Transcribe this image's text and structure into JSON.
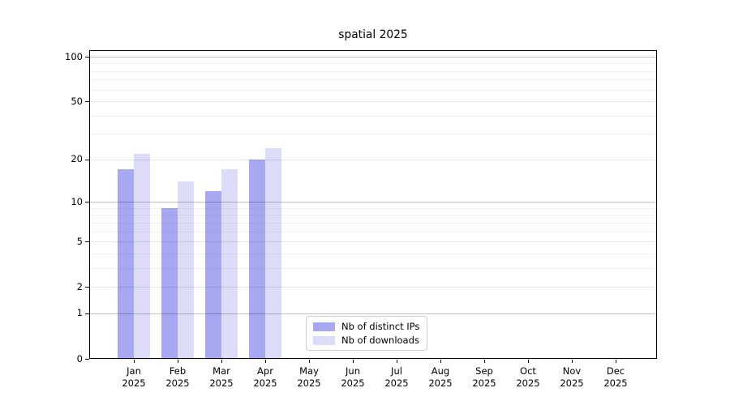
{
  "chart_data": {
    "type": "bar",
    "title": "spatial 2025",
    "categories": [
      "Jan",
      "Feb",
      "Mar",
      "Apr",
      "May",
      "Jun",
      "Jul",
      "Aug",
      "Sep",
      "Oct",
      "Nov",
      "Dec"
    ],
    "category_year": "2025",
    "series": [
      {
        "name": "Nb of distinct IPs",
        "color": "#a8a8f2",
        "values": [
          17,
          9,
          12,
          20,
          0,
          0,
          0,
          0,
          0,
          0,
          0,
          0
        ]
      },
      {
        "name": "Nb of downloads",
        "color": "#dcdcf8",
        "values": [
          22,
          14,
          17,
          24,
          0,
          0,
          0,
          0,
          0,
          0,
          0,
          0
        ]
      }
    ],
    "y_axis": {
      "scale": "log1p",
      "ylim": [
        0,
        100
      ],
      "major_ticks": [
        0,
        1,
        2,
        5,
        10,
        20,
        50,
        100
      ],
      "decade_gridlines": [
        1,
        10,
        100
      ],
      "minor_gridlines": [
        3,
        4,
        6,
        7,
        8,
        9,
        30,
        40,
        60,
        70,
        80,
        90
      ]
    },
    "legend": {
      "position": "lower center, inside plot"
    },
    "grid": true,
    "colors": {
      "decade_gridline": "rgba(0,0,0,0.24)",
      "major_gridline": "rgba(0,0,0,0.10)",
      "minor_gridline": "rgba(0,0,0,0.055)",
      "spine": "#000000",
      "text": "#000000",
      "background": "#ffffff"
    }
  }
}
